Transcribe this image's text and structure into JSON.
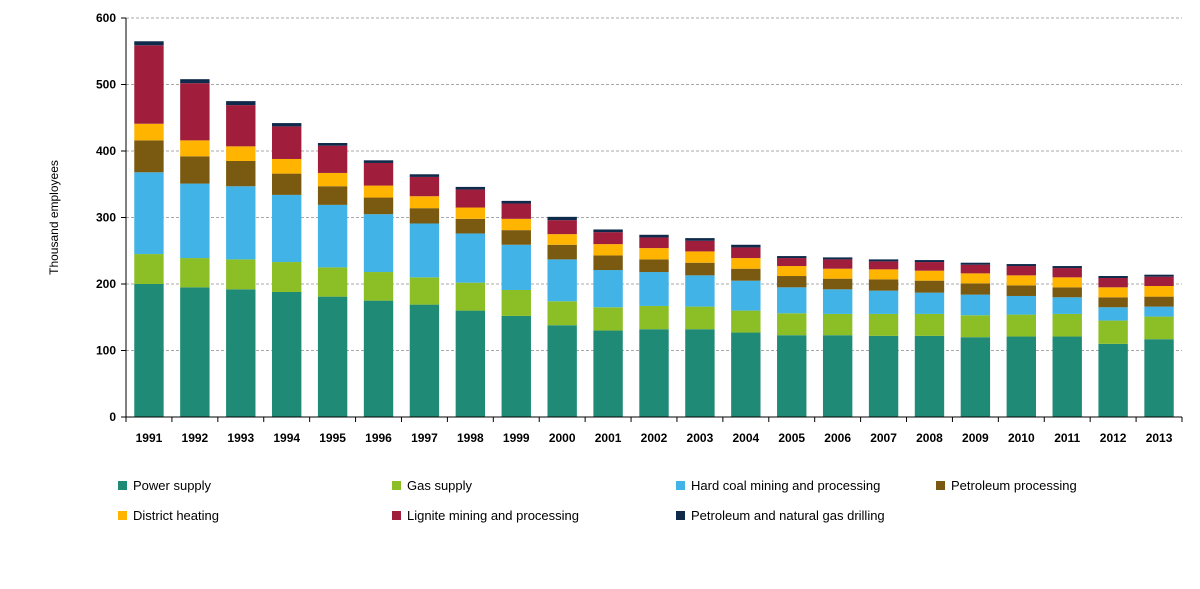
{
  "chart_data": {
    "type": "bar",
    "stacked": true,
    "title": "",
    "xlabel": "",
    "ylabel": "Thousand employees",
    "ylim": [
      0,
      600
    ],
    "yticks": [
      0,
      100,
      200,
      300,
      400,
      500,
      600
    ],
    "grid": "horizontal dashed",
    "legend_position": "bottom",
    "categories": [
      "1991",
      "1992",
      "1993",
      "1994",
      "1995",
      "1996",
      "1997",
      "1998",
      "1999",
      "2000",
      "2001",
      "2002",
      "2003",
      "2004",
      "2005",
      "2006",
      "2007",
      "2008",
      "2009",
      "2010",
      "2011",
      "2012",
      "2013"
    ],
    "series": [
      {
        "name": "Power supply",
        "color": "#1f8a76",
        "values": [
          200,
          195,
          192,
          188,
          181,
          175,
          169,
          160,
          152,
          138,
          130,
          132,
          132,
          127,
          123,
          123,
          122,
          122,
          120,
          121,
          121,
          110,
          117
        ]
      },
      {
        "name": "Gas supply",
        "color": "#8cbf26",
        "values": [
          45,
          44,
          45,
          45,
          44,
          43,
          41,
          42,
          39,
          36,
          35,
          35,
          34,
          33,
          33,
          32,
          33,
          33,
          33,
          33,
          34,
          35,
          34
        ]
      },
      {
        "name": "Hard coal mining and processing",
        "color": "#41b3e6",
        "values": [
          123,
          112,
          110,
          101,
          94,
          87,
          81,
          74,
          68,
          63,
          56,
          51,
          47,
          45,
          39,
          37,
          35,
          32,
          31,
          28,
          25,
          20,
          15
        ]
      },
      {
        "name": "Petroleum processing",
        "color": "#7a5a10",
        "values": [
          48,
          41,
          38,
          32,
          28,
          25,
          23,
          22,
          22,
          22,
          22,
          19,
          19,
          18,
          17,
          16,
          17,
          18,
          17,
          16,
          15,
          15,
          15
        ]
      },
      {
        "name": "District heating",
        "color": "#ffb400",
        "values": [
          25,
          24,
          22,
          22,
          20,
          18,
          18,
          17,
          17,
          16,
          17,
          17,
          17,
          16,
          15,
          15,
          15,
          15,
          15,
          15,
          15,
          15,
          16
        ]
      },
      {
        "name": "Lignite mining and processing",
        "color": "#a01e3c",
        "values": [
          118,
          86,
          62,
          49,
          41,
          34,
          29,
          27,
          23,
          21,
          18,
          16,
          16,
          16,
          12,
          14,
          12,
          13,
          13,
          14,
          14,
          14,
          14
        ]
      },
      {
        "name": "Petroleum and natural gas drilling",
        "color": "#0f2a4a",
        "values": [
          6,
          6,
          6,
          5,
          4,
          4,
          4,
          4,
          4,
          5,
          4,
          4,
          4,
          4,
          3,
          3,
          3,
          3,
          3,
          3,
          3,
          3,
          3
        ]
      }
    ]
  }
}
